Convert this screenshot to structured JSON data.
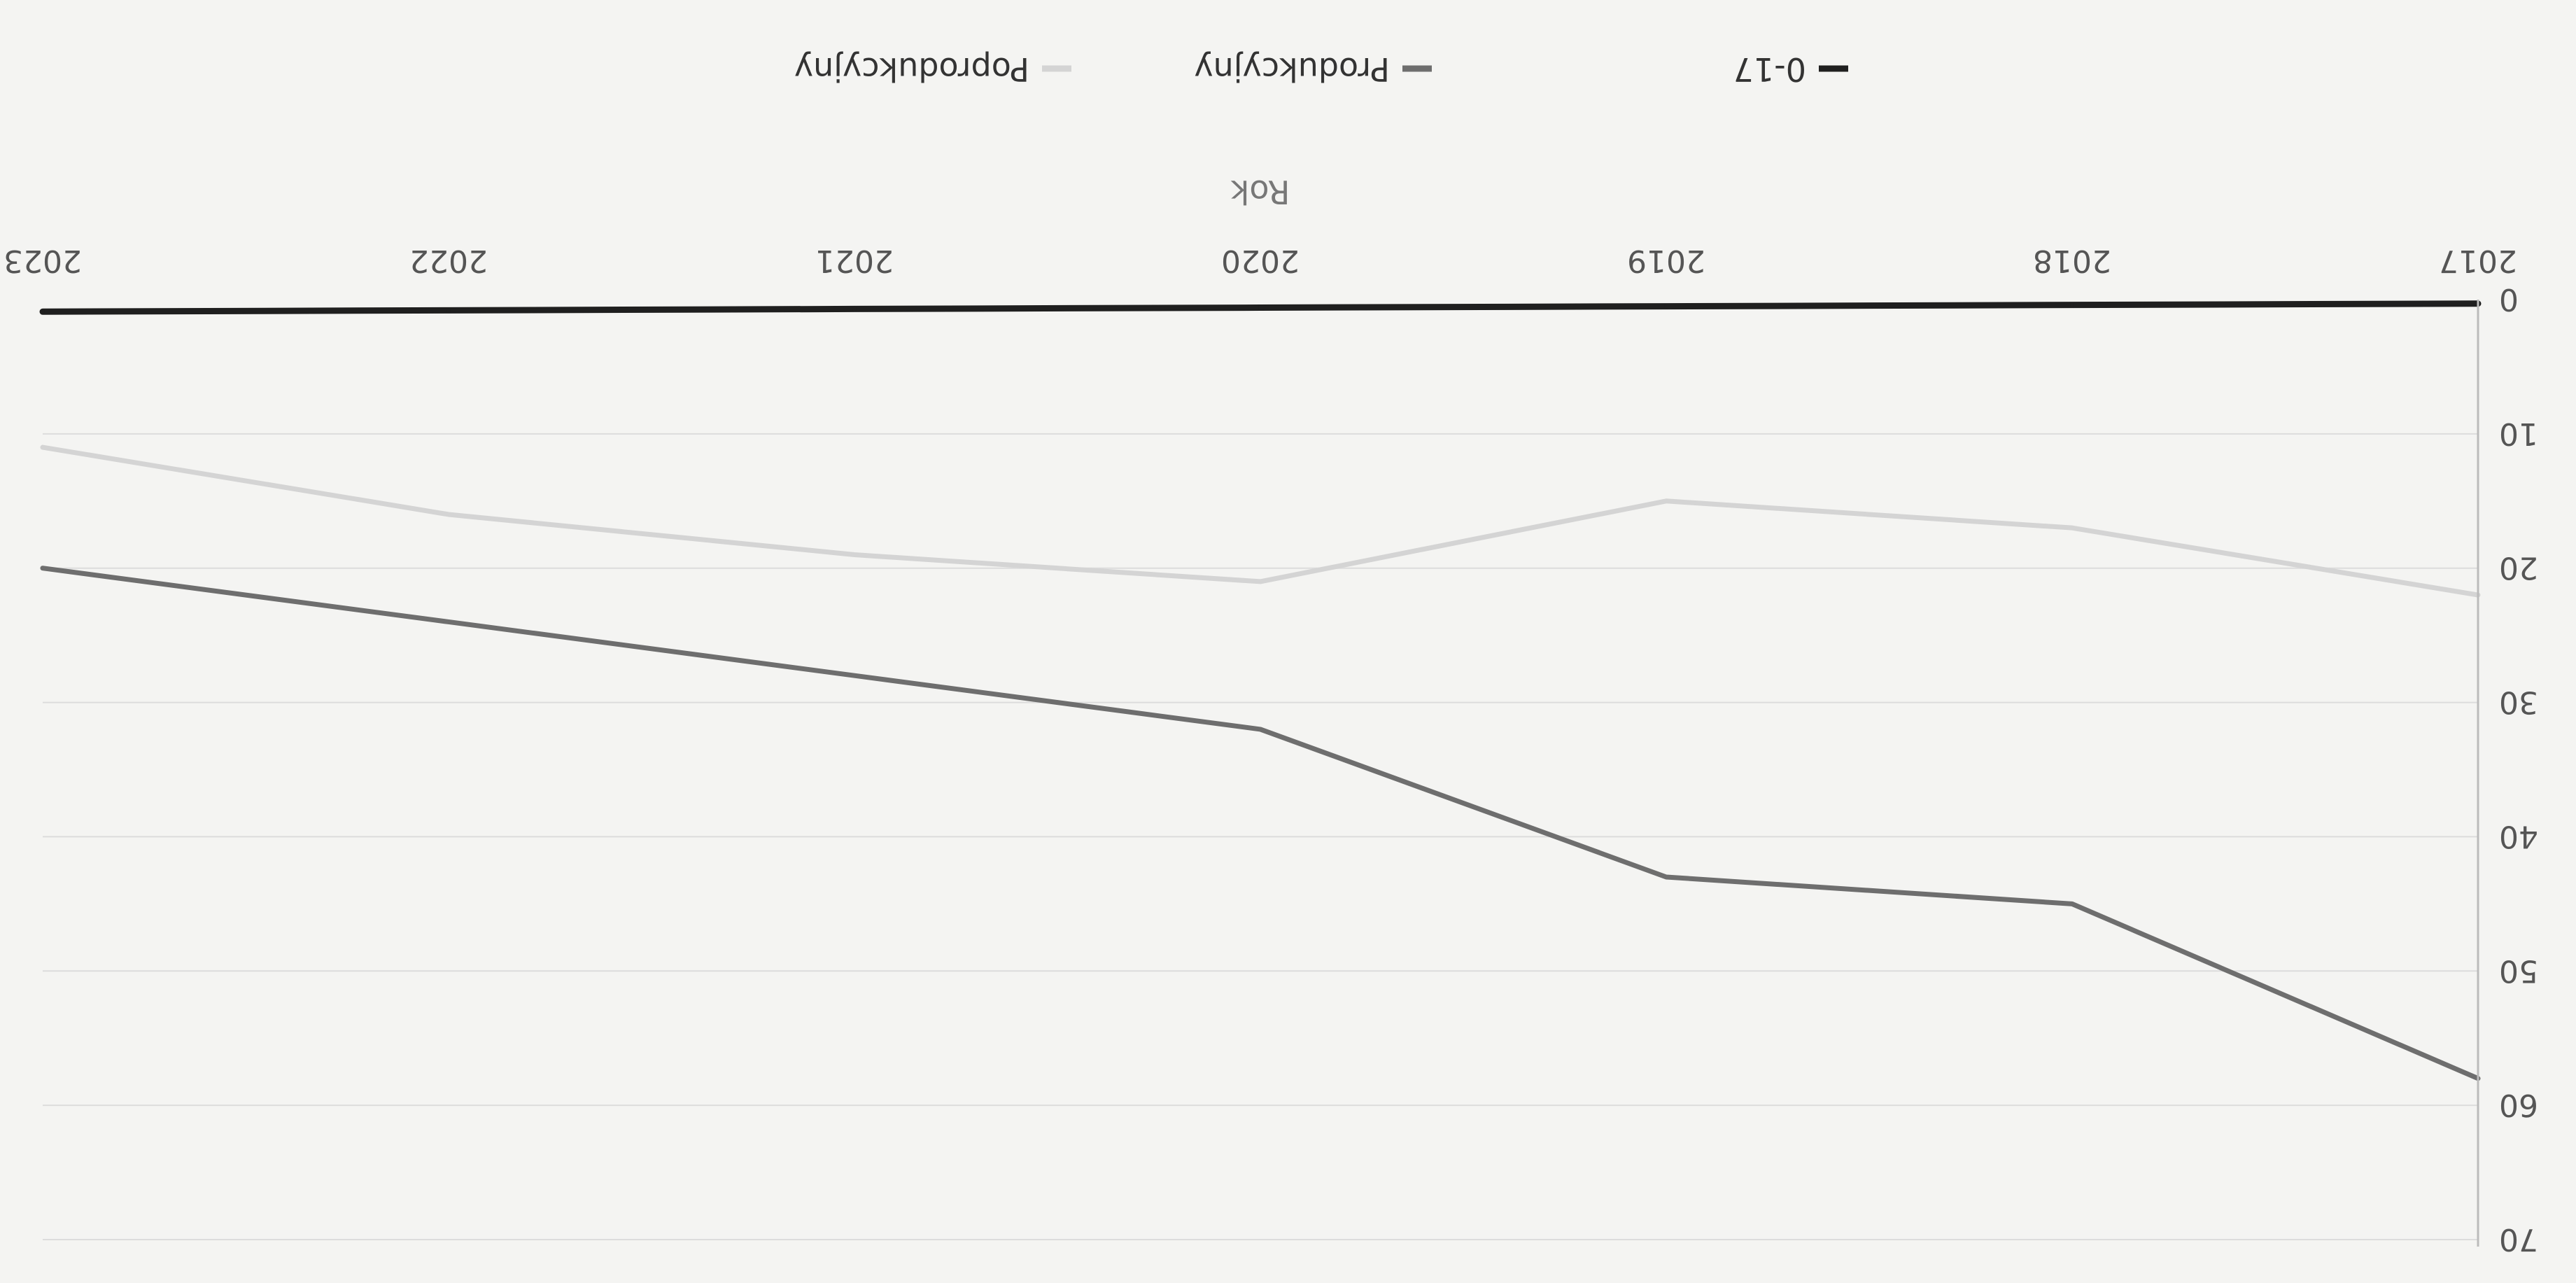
{
  "chart_data": {
    "type": "line",
    "title": "",
    "xlabel": "Rok",
    "ylabel": "",
    "categories": [
      "2017",
      "2018",
      "2019",
      "2020",
      "2021",
      "2022",
      "2023"
    ],
    "ylim": [
      0,
      70
    ],
    "yticks": [
      0,
      10,
      20,
      30,
      40,
      50,
      60,
      70
    ],
    "grid": true,
    "orientation": "rotated 180 degrees (upside down)",
    "legend_position": "bottom",
    "series": [
      {
        "name": "0-17",
        "color": "#1f1f1f",
        "values": [
          0.3,
          0.4,
          0.5,
          0.6,
          0.7,
          0.8,
          0.9
        ]
      },
      {
        "name": "Produkcyjny",
        "color": "#6e6e6e",
        "values": [
          58,
          45,
          43,
          32,
          28,
          24,
          20
        ]
      },
      {
        "name": "Poprodukcyjny",
        "color": "#d4d4d4",
        "values": [
          22,
          17,
          15,
          21,
          19,
          16,
          11
        ]
      }
    ]
  }
}
